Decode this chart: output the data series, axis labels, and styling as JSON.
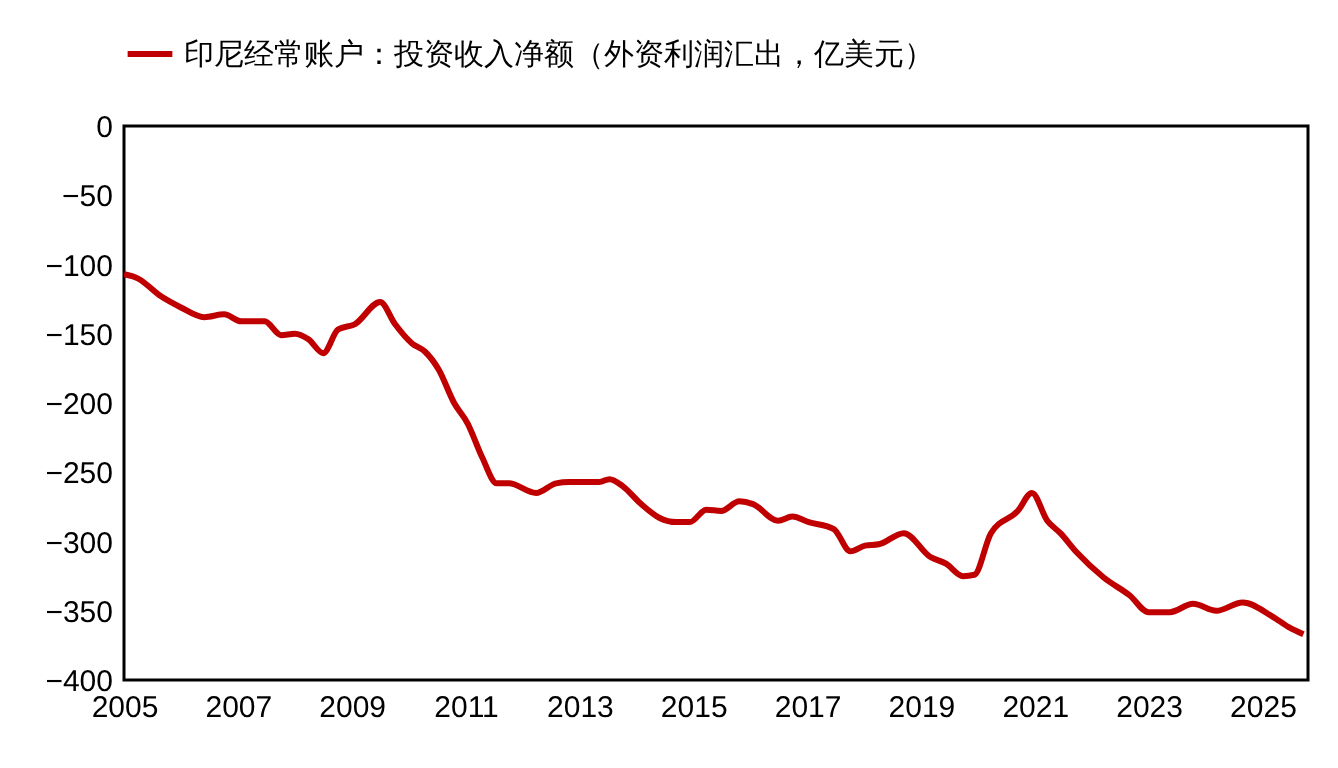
{
  "chart_data": {
    "type": "line",
    "x": [
      2005,
      2005.24,
      2005.65,
      2006,
      2006.41,
      2006.76,
      2007.06,
      2007.47,
      2007.76,
      2008,
      2008.24,
      2008.5,
      2008.76,
      2009.06,
      2009.5,
      2009.76,
      2010.06,
      2010.29,
      2010.53,
      2010.8,
      2011.04,
      2011.29,
      2011.55,
      2011.76,
      2012.24,
      2012.59,
      2012.82,
      2013.35,
      2013.53,
      2013.76,
      2014.06,
      2014.41,
      2014.7,
      2014.94,
      2015.23,
      2015.49,
      2015.81,
      2016.05,
      2016.49,
      2016.74,
      2017.03,
      2017.47,
      2017.76,
      2018.02,
      2018.26,
      2018.7,
      2019.16,
      2019.44,
      2019.74,
      2019.94,
      2020.23,
      2020.7,
      2020.95,
      2021.22,
      2021.45,
      2021.74,
      2022.21,
      2022.67,
      2023,
      2023.37,
      2023.78,
      2024.19,
      2024.65,
      2025.17,
      2025.47,
      2025.72
    ],
    "series": [
      {
        "name": "印尼经常账户：投资收入净额（外资利润汇出，亿美元）",
        "color": "#c00000",
        "values": [
          -107,
          -110,
          -123,
          -131,
          -138,
          -136,
          -141,
          -141,
          -151,
          -150,
          -154,
          -164,
          -147,
          -143,
          -127,
          -143,
          -157,
          -163,
          -176,
          -200,
          -215,
          -239,
          -258,
          -258,
          -265,
          -258,
          -257,
          -257,
          -255,
          -260,
          -272,
          -283,
          -286,
          -286,
          -277,
          -278,
          -271,
          -273,
          -285,
          -282,
          -286,
          -291,
          -307,
          -303,
          -302,
          -294,
          -311,
          -316,
          -325,
          -324,
          -294,
          -278,
          -265,
          -285,
          -294,
          -308,
          -326,
          -339,
          -351,
          -351,
          -345,
          -350,
          -344,
          -354,
          -362,
          -367
        ]
      }
    ],
    "xlim": [
      2005,
      2025.8
    ],
    "xticks": [
      2005,
      2007,
      2009,
      2011,
      2013,
      2015,
      2017,
      2019,
      2021,
      2023,
      2025
    ],
    "ylim": [
      -400,
      0
    ],
    "yticks": [
      0,
      -50,
      -100,
      -150,
      -200,
      -250,
      -300,
      -350,
      -400
    ],
    "legend": "top",
    "grid": false
  }
}
